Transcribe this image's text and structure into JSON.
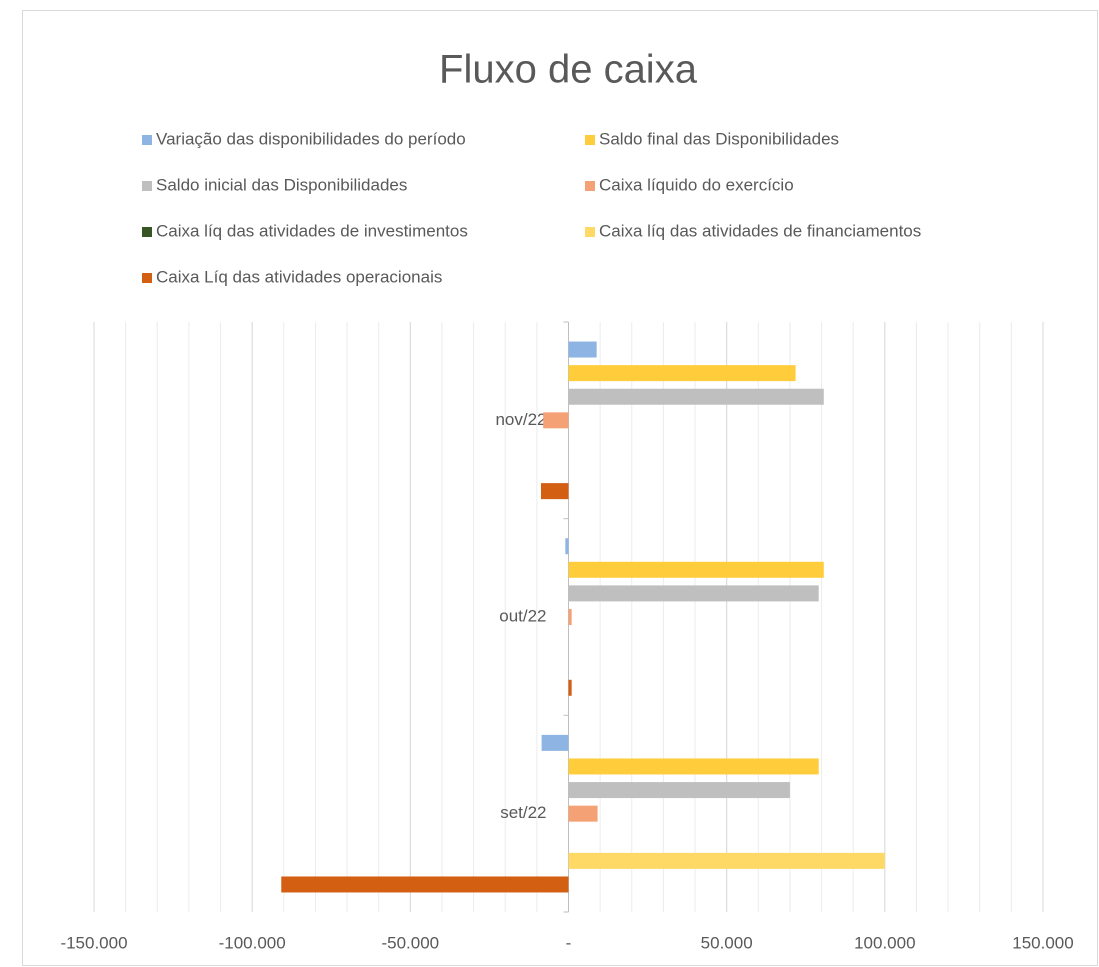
{
  "chart_data": {
    "type": "hbar",
    "title": "Fluxo de caixa",
    "categories": [
      "set/22",
      "out/22",
      "nov/22"
    ],
    "series": [
      {
        "name": "Variação das disponibilidades do período",
        "color": "#8db4e2",
        "values": [
          -8500,
          -1000,
          8900
        ]
      },
      {
        "name": "Saldo final das Disponibilidades",
        "color": "#ffcd3c",
        "values": [
          79100,
          80700,
          71800
        ]
      },
      {
        "name": "Saldo inicial das Disponibilidades",
        "color": "#bfbfbf",
        "values": [
          70000,
          79100,
          80700
        ]
      },
      {
        "name": "Caixa líquido do exercício",
        "color": "#f4a275",
        "values": [
          9200,
          1000,
          -8000
        ]
      },
      {
        "name": "Caixa líq das atividades de investimentos",
        "color": "#375623",
        "values": [
          0,
          0,
          0
        ]
      },
      {
        "name": "Caixa líq das atividades de financiamentos",
        "color": "#ffd966",
        "values": [
          100000,
          0,
          0
        ]
      },
      {
        "name": "Caixa Líq das atividades operacionais",
        "color": "#d35f13",
        "values": [
          -90800,
          1000,
          -8700
        ]
      }
    ],
    "xlim": [
      -150000,
      150000
    ],
    "xticks": [
      {
        "value": -150000,
        "label": "-150.000"
      },
      {
        "value": -100000,
        "label": "-100.000"
      },
      {
        "value": -50000,
        "label": "-50.000"
      },
      {
        "value": 0,
        "label": "-"
      },
      {
        "value": 50000,
        "label": "50.000"
      },
      {
        "value": 100000,
        "label": "100.000"
      },
      {
        "value": 150000,
        "label": "150.000"
      }
    ],
    "x_minor_step": 10000,
    "grid": true,
    "legend": "top"
  }
}
